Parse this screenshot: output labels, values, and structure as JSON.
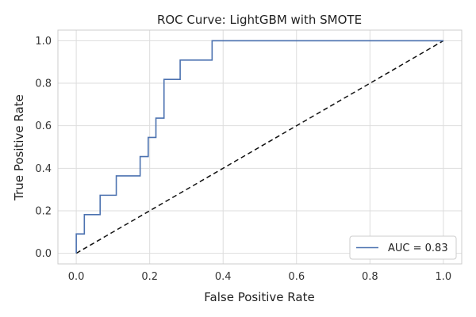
{
  "chart_data": {
    "type": "line",
    "title": "ROC Curve: LightGBM with SMOTE",
    "xlabel": "False Positive Rate",
    "ylabel": "True Positive Rate",
    "xlim": [
      -0.05,
      1.05
    ],
    "ylim": [
      -0.05,
      1.05
    ],
    "xticks": [
      0.0,
      0.2,
      0.4,
      0.6,
      0.8,
      1.0
    ],
    "xtick_labels": [
      "0.0",
      "0.2",
      "0.4",
      "0.6",
      "0.8",
      "1.0"
    ],
    "yticks": [
      0.0,
      0.2,
      0.4,
      0.6,
      0.8,
      1.0
    ],
    "ytick_labels": [
      "0.0",
      "0.2",
      "0.4",
      "0.6",
      "0.8",
      "1.0"
    ],
    "grid": true,
    "legend_position": "lower-right",
    "series": [
      {
        "name": "AUC = 0.83",
        "color": "#4c72b0",
        "style": "solid",
        "x": [
          0.0,
          0.0,
          0.022,
          0.022,
          0.065,
          0.065,
          0.109,
          0.109,
          0.174,
          0.174,
          0.196,
          0.196,
          0.217,
          0.217,
          0.239,
          0.239,
          0.283,
          0.283,
          0.37,
          0.37,
          1.0
        ],
        "y": [
          0.0,
          0.091,
          0.091,
          0.182,
          0.182,
          0.273,
          0.273,
          0.364,
          0.364,
          0.455,
          0.455,
          0.545,
          0.545,
          0.636,
          0.636,
          0.818,
          0.818,
          0.909,
          0.909,
          1.0,
          1.0
        ]
      }
    ],
    "reference_line": {
      "color": "#111111",
      "style": "dashed",
      "x": [
        0.0,
        1.0
      ],
      "y": [
        0.0,
        1.0
      ]
    }
  }
}
